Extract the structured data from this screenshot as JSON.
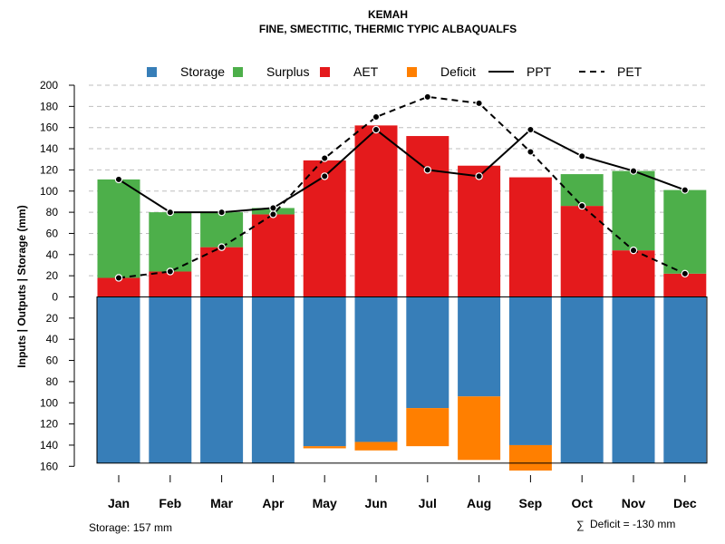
{
  "chart_data": {
    "type": "bar",
    "title": "KEMAH",
    "subtitle": "FINE, SMECTITIC, THERMIC TYPIC ALBAQUALFS",
    "ylabel": "Inputs | Outputs | Storage    (mm)",
    "categories": [
      "Jan",
      "Feb",
      "Mar",
      "Apr",
      "May",
      "Jun",
      "Jul",
      "Aug",
      "Sep",
      "Oct",
      "Nov",
      "Dec"
    ],
    "ylim_top": [
      0,
      200
    ],
    "ylim_bottom": [
      0,
      160
    ],
    "y_ticks_top": [
      "200",
      "180",
      "160",
      "140",
      "120",
      "100",
      "80",
      "60",
      "40",
      "20",
      "0"
    ],
    "y_ticks_bottom": [
      "20",
      "40",
      "60",
      "80",
      "100",
      "120",
      "140",
      "160"
    ],
    "legend": [
      "Storage",
      "Surplus",
      "AET",
      "Deficit",
      "PPT",
      "PET"
    ],
    "colors": {
      "storage": "#377EB8",
      "surplus": "#4DAF4A",
      "aet": "#E41A1C",
      "deficit": "#FF7F00",
      "line": "#000000",
      "grid": "#BEBEBE"
    },
    "series": [
      {
        "name": "AET",
        "values": [
          18,
          24,
          47,
          78,
          129,
          162,
          152,
          124,
          113,
          86,
          44,
          22
        ]
      },
      {
        "name": "Surplus",
        "values": [
          93,
          56,
          33,
          6,
          0,
          0,
          0,
          0,
          0,
          30,
          75,
          79
        ]
      },
      {
        "name": "PPT",
        "values": [
          111,
          80,
          80,
          84,
          114,
          158,
          120,
          114,
          158,
          133,
          119,
          101
        ]
      },
      {
        "name": "PET",
        "values": [
          18,
          24,
          47,
          78,
          131,
          170,
          189,
          183,
          137,
          86,
          44,
          22
        ]
      },
      {
        "name": "Storage",
        "values": [
          157,
          157,
          157,
          157,
          141,
          137,
          105,
          94,
          140,
          157,
          157,
          157
        ]
      },
      {
        "name": "Deficit",
        "values": [
          0,
          0,
          0,
          0,
          2,
          8,
          36,
          60,
          24,
          0,
          0,
          0
        ]
      }
    ],
    "annotations": {
      "storage": "Storage: 157 mm",
      "deficit_sum_symbol": "∑",
      "deficit": "Deficit = -130 mm"
    }
  }
}
